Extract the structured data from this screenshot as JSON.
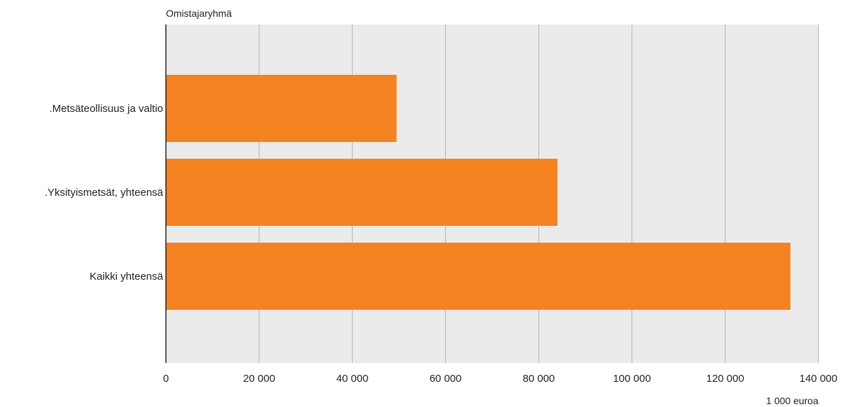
{
  "chart_data": {
    "type": "bar",
    "orientation": "horizontal",
    "y_axis_title": "Omistajaryhmä",
    "x_axis_title": "1 000 euroa",
    "categories": [
      ".Metsäteollisuus ja valtio",
      ".Yksityismetsät, yhteensä",
      "Kaikki yhteensä"
    ],
    "values": [
      49500,
      84000,
      134000
    ],
    "xlim": [
      0,
      140000
    ],
    "x_ticks": [
      0,
      20000,
      40000,
      60000,
      80000,
      100000,
      120000,
      140000
    ],
    "x_tick_labels": [
      "0",
      "20 000",
      "40 000",
      "60 000",
      "80 000",
      "100 000",
      "120 000",
      "140 000"
    ],
    "grid": true,
    "colors": {
      "bar": "#f58220",
      "plot_background": "#ebebeb",
      "grid": "#bdbdbd",
      "axis": "#222222"
    }
  }
}
